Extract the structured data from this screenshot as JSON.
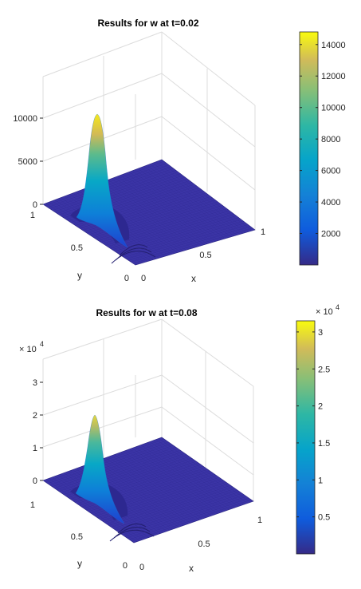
{
  "chart_data": [
    {
      "type": "surface",
      "title": "Results for w at t=0.02",
      "xlabel": "x",
      "ylabel": "y",
      "xlim": [
        0,
        1
      ],
      "ylim": [
        0,
        1
      ],
      "x_ticks": [
        "0",
        "0.5",
        "1"
      ],
      "y_ticks": [
        "0",
        "0.5",
        "1"
      ],
      "z_ticks": [
        "0",
        "5000",
        "10000"
      ],
      "z_tick_values": [
        0,
        5000,
        10000
      ],
      "zlim": [
        0,
        14000
      ],
      "z_peak": 14500,
      "peak_location": {
        "x": 0.0,
        "y": 0.0
      },
      "colorbar": {
        "ticks": [
          "2000",
          "4000",
          "6000",
          "8000",
          "10000",
          "12000",
          "14000"
        ],
        "tick_values": [
          2000,
          4000,
          6000,
          8000,
          10000,
          12000,
          14000
        ],
        "range": [
          0,
          14800
        ],
        "exponent": ""
      },
      "colormap": "parula"
    },
    {
      "type": "surface",
      "title": "Results for w at t=0.08",
      "xlabel": "x",
      "ylabel": "y",
      "xlim": [
        0,
        1
      ],
      "ylim": [
        0,
        1
      ],
      "x_ticks": [
        "0",
        "0.5",
        "1"
      ],
      "y_ticks": [
        "0",
        "0.5",
        "1"
      ],
      "z_ticks": [
        "0",
        "1",
        "2",
        "3"
      ],
      "z_tick_values": [
        0,
        10000,
        20000,
        30000
      ],
      "z_exponent": "× 10",
      "z_exponent_power": "4",
      "zlim": [
        0,
        35000
      ],
      "z_peak": 20000,
      "peak_location": {
        "x": 0.0,
        "y": 0.0
      },
      "colorbar": {
        "ticks": [
          "0.5",
          "1",
          "1.5",
          "2",
          "2.5",
          "3"
        ],
        "tick_values": [
          5000,
          10000,
          15000,
          20000,
          25000,
          30000
        ],
        "range": [
          0,
          31500
        ],
        "exponent": "× 10",
        "exponent_power": "4"
      },
      "colormap": "parula"
    }
  ]
}
